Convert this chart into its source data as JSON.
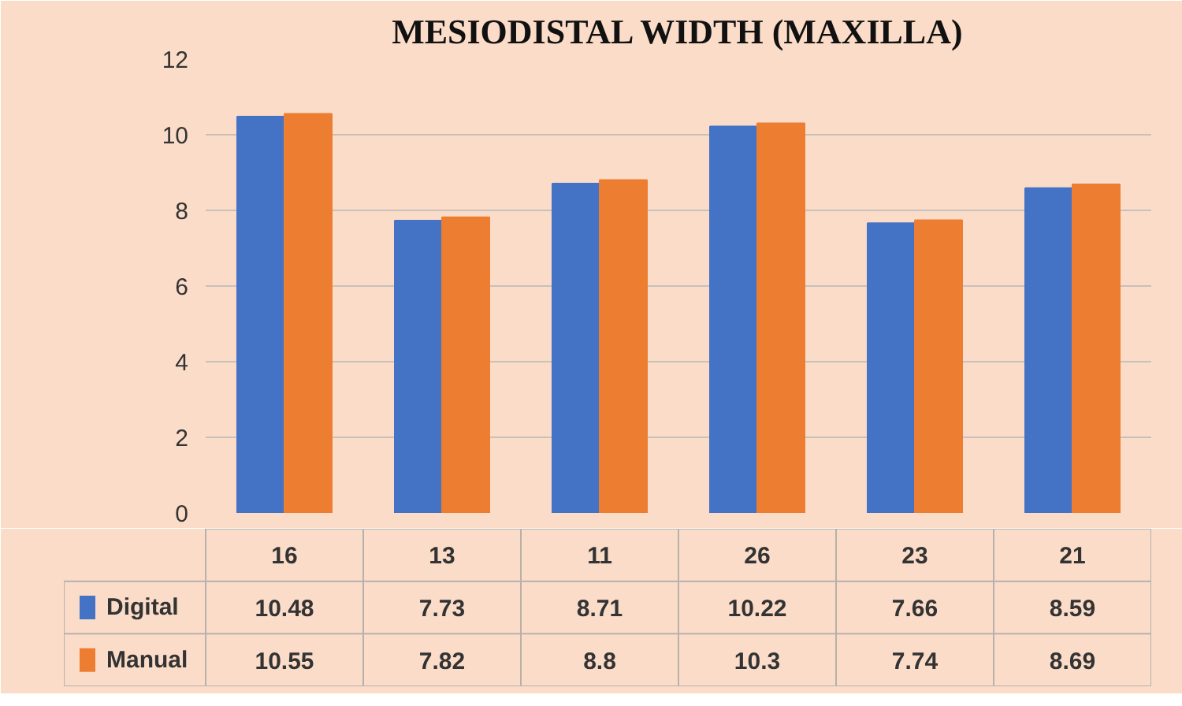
{
  "chart_data": {
    "type": "bar",
    "title": "MESIODISTAL WIDTH (MAXILLA)",
    "categories": [
      "16",
      "13",
      "11",
      "26",
      "23",
      "21"
    ],
    "series": [
      {
        "name": "Digital",
        "color": "#4472c4",
        "values": [
          10.48,
          7.73,
          8.71,
          10.22,
          7.66,
          8.59
        ]
      },
      {
        "name": "Manual",
        "color": "#ed7d31",
        "values": [
          10.55,
          7.82,
          8.8,
          10.3,
          7.74,
          8.69
        ]
      }
    ],
    "ylim": [
      0,
      12
    ],
    "yticks": [
      0,
      2,
      4,
      6,
      8,
      10,
      12
    ],
    "grid": "y",
    "data_labels": true,
    "legend": "bottom"
  }
}
